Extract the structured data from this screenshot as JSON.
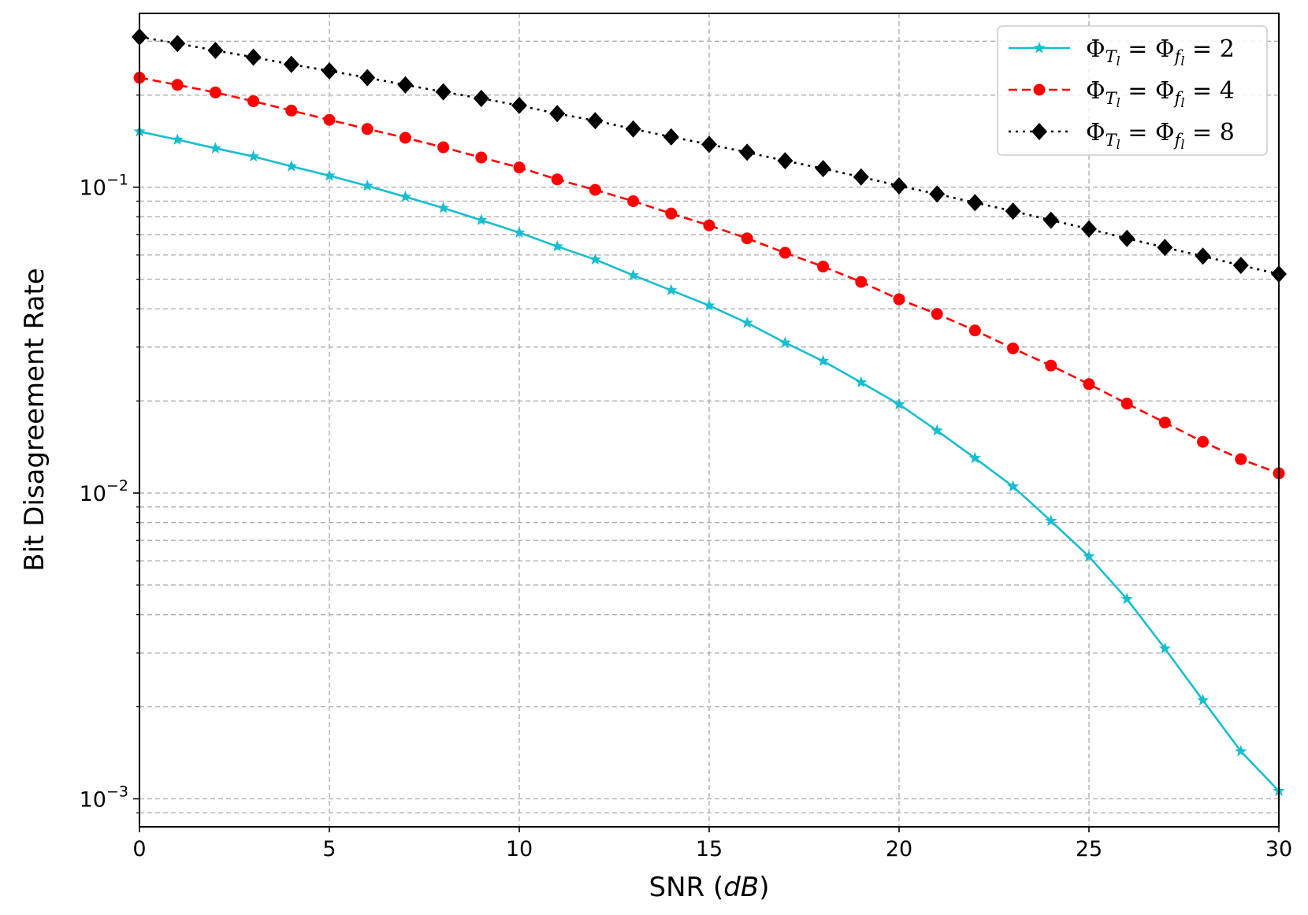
{
  "chart_data": {
    "type": "line",
    "title": "",
    "xlabel_prefix": "SNR (",
    "xlabel_italic": "dB",
    "xlabel_suffix": ")",
    "ylabel": "Bit Disagreement Rate",
    "xlim": [
      0,
      30
    ],
    "ylim": [
      0.00081,
      0.37
    ],
    "yscale": "log",
    "grid": true,
    "legend_position": "upper-right",
    "x_ticks": [
      0,
      5,
      10,
      15,
      20,
      25,
      30
    ],
    "y_ticks": [
      {
        "value": 0.1,
        "base": "10",
        "exp": "−1"
      },
      {
        "value": 0.01,
        "base": "10",
        "exp": "−2"
      },
      {
        "value": 0.001,
        "base": "10",
        "exp": "−3"
      }
    ],
    "x": [
      0,
      1,
      2,
      3,
      4,
      5,
      6,
      7,
      8,
      9,
      10,
      11,
      12,
      13,
      14,
      15,
      16,
      17,
      18,
      19,
      20,
      21,
      22,
      23,
      24,
      25,
      26,
      27,
      28,
      29,
      30
    ],
    "series": [
      {
        "name": "Φ_{T_l} = Φ_{f_l} = 2",
        "legend_param": "2",
        "color": "#17becf",
        "line_style": "solid",
        "marker": "star",
        "values": [
          0.152,
          0.143,
          0.134,
          0.126,
          0.117,
          0.109,
          0.101,
          0.093,
          0.0855,
          0.078,
          0.071,
          0.064,
          0.058,
          0.0515,
          0.046,
          0.041,
          0.036,
          0.031,
          0.027,
          0.023,
          0.0195,
          0.016,
          0.013,
          0.0105,
          0.0081,
          0.0062,
          0.0045,
          0.0031,
          0.0021,
          0.00143,
          0.00106
        ]
      },
      {
        "name": "Φ_{T_l} = Φ_{f_l} = 4",
        "legend_param": "4",
        "color": "#ff0000",
        "line_style": "dashed",
        "marker": "circle",
        "values": [
          0.228,
          0.216,
          0.204,
          0.191,
          0.178,
          0.166,
          0.155,
          0.145,
          0.135,
          0.125,
          0.116,
          0.106,
          0.098,
          0.09,
          0.082,
          0.075,
          0.068,
          0.061,
          0.055,
          0.049,
          0.043,
          0.0385,
          0.034,
          0.0297,
          0.0261,
          0.0227,
          0.0196,
          0.017,
          0.0147,
          0.0129,
          0.0116
        ]
      },
      {
        "name": "Φ_{T_l} = Φ_{f_l} = 8",
        "legend_param": "8",
        "color": "#000000",
        "line_style": "dotted",
        "marker": "diamond",
        "values": [
          0.31,
          0.295,
          0.28,
          0.266,
          0.252,
          0.24,
          0.228,
          0.216,
          0.205,
          0.195,
          0.185,
          0.174,
          0.165,
          0.155,
          0.146,
          0.138,
          0.13,
          0.122,
          0.115,
          0.108,
          0.101,
          0.095,
          0.089,
          0.0835,
          0.078,
          0.073,
          0.068,
          0.0635,
          0.0595,
          0.0555,
          0.052
        ]
      }
    ]
  }
}
